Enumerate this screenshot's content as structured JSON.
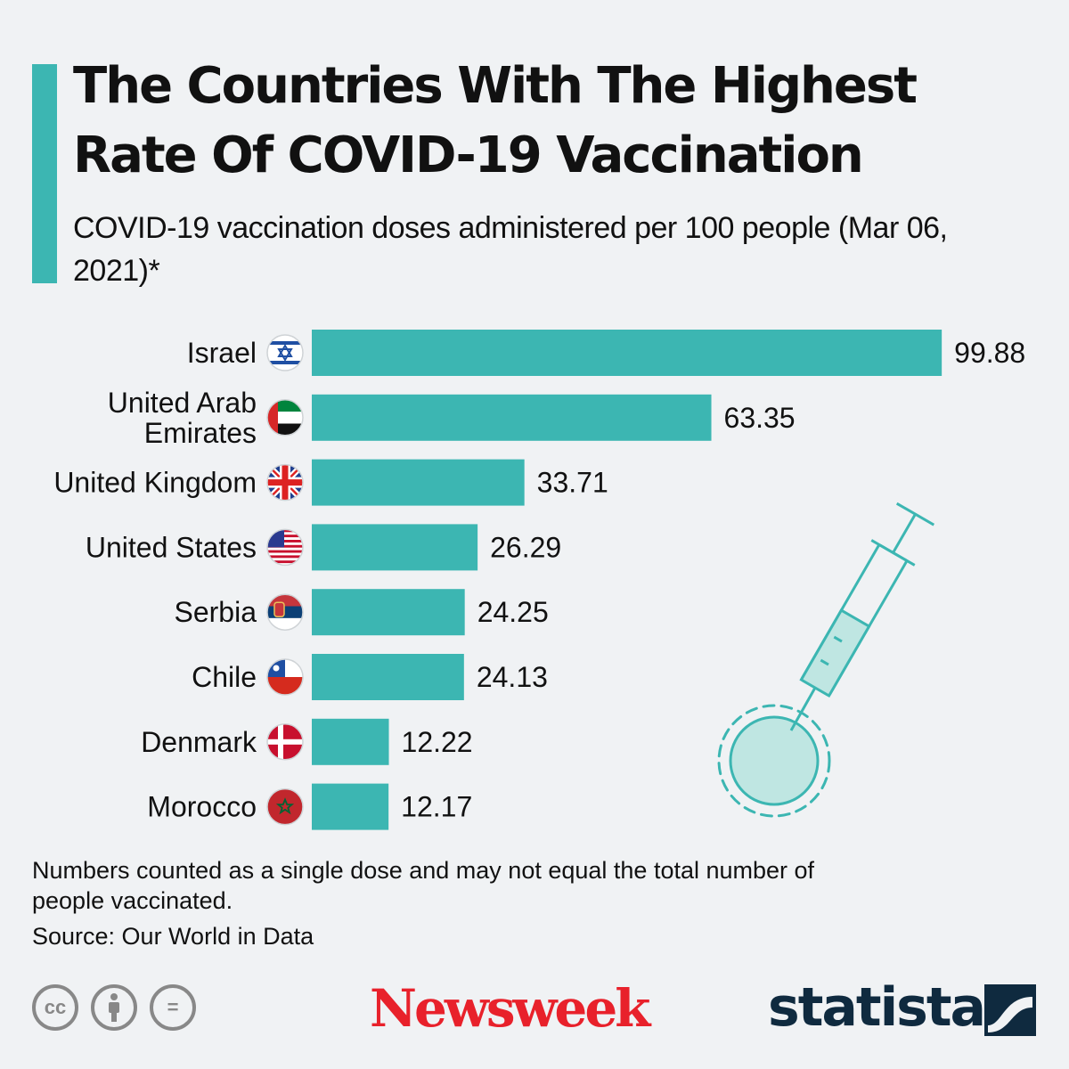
{
  "colors": {
    "accent": "#3cb6b2",
    "background": "#f0f2f4",
    "newsweek_red": "#e8212b",
    "statista_navy": "#0f2a3f"
  },
  "header": {
    "title": "The Countries With The Highest Rate Of COVID-19 Vaccination",
    "subtitle": "COVID-19 vaccination doses administered per 100 people (Mar 06, 2021)*"
  },
  "chart_data": {
    "type": "bar",
    "orientation": "horizontal",
    "title": "The Countries With The Highest Rate Of COVID-19 Vaccination",
    "subtitle": "COVID-19 vaccination doses administered per 100 people (Mar 06, 2021)*",
    "xlabel": "",
    "ylabel": "",
    "xlim": [
      0,
      100
    ],
    "categories": [
      "Israel",
      "United Arab Emirates",
      "United Kingdom",
      "United States",
      "Serbia",
      "Chile",
      "Denmark",
      "Morocco"
    ],
    "category_lines": [
      [
        "Israel"
      ],
      [
        "United Arab",
        "Emirates"
      ],
      [
        "United Kingdom"
      ],
      [
        "United States"
      ],
      [
        "Serbia"
      ],
      [
        "Chile"
      ],
      [
        "Denmark"
      ],
      [
        "Morocco"
      ]
    ],
    "values": [
      99.88,
      63.35,
      33.71,
      26.29,
      24.25,
      24.13,
      12.22,
      12.17
    ],
    "value_labels": [
      "99.88",
      "63.35",
      "33.71",
      "26.29",
      "24.25",
      "24.13",
      "12.22",
      "12.17"
    ],
    "flags": [
      "israel-flag-icon",
      "uae-flag-icon",
      "uk-flag-icon",
      "us-flag-icon",
      "serbia-flag-icon",
      "chile-flag-icon",
      "denmark-flag-icon",
      "morocco-flag-icon"
    ]
  },
  "footer": {
    "note": "Numbers counted as a single dose and may not equal the total number of people vaccinated.",
    "source": "Source: Our World in Data",
    "license_icons": [
      "cc-icon",
      "attribution-icon",
      "no-derivatives-icon"
    ],
    "cc_text": "cc",
    "nd_text": "=",
    "newsweek_logo": "Newsweek",
    "statista_logo": "statista"
  }
}
